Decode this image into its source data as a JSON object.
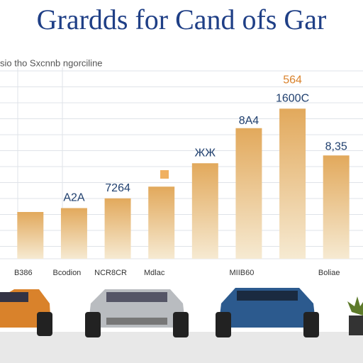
{
  "chart_data": {
    "type": "bar",
    "title": "Grardds for Cand ofs Gar",
    "subtitle": "sio tho Sxcnnb ngorciline",
    "categories": [
      "B386",
      "Bcodion",
      "NCR8CR",
      "Mdlac",
      null,
      "MIIB60",
      null,
      "Boliae"
    ],
    "values": [
      24,
      26,
      31,
      37,
      49,
      67,
      77,
      53
    ],
    "annotations": [
      "A2A",
      "7264",
      "ЖЖ",
      "8A4",
      "1600C",
      "564",
      "8,35"
    ],
    "color": "#e2a95c",
    "ylim": [
      0,
      100
    ],
    "grid": true
  }
}
